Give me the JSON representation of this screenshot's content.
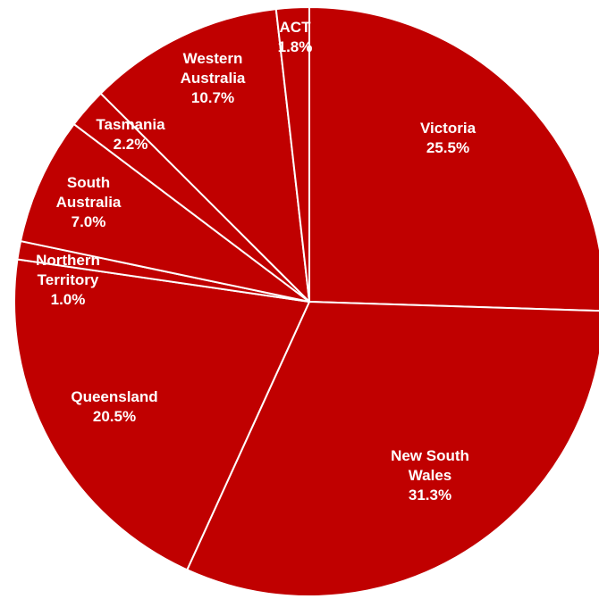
{
  "chart_data": {
    "type": "pie",
    "colors": {
      "slice_fill": "#c00000",
      "separator": "#ffffff",
      "label_text": "#ffffff"
    },
    "slices": [
      {
        "label": "Victoria",
        "value": 25.5,
        "value_label": "25.5%"
      },
      {
        "label": "New South Wales",
        "value": 31.3,
        "value_label": "31.3%"
      },
      {
        "label": "Queensland",
        "value": 20.5,
        "value_label": "20.5%"
      },
      {
        "label": "Northern Territory",
        "value": 1.0,
        "value_label": "1.0%"
      },
      {
        "label": "South Australia",
        "value": 7.0,
        "value_label": "7.0%"
      },
      {
        "label": "Tasmania",
        "value": 2.2,
        "value_label": "2.2%"
      },
      {
        "label": "Western Australia",
        "value": 10.7,
        "value_label": "10.7%"
      },
      {
        "label": "ACT",
        "value": 1.8,
        "value_label": "1.8%"
      }
    ]
  }
}
